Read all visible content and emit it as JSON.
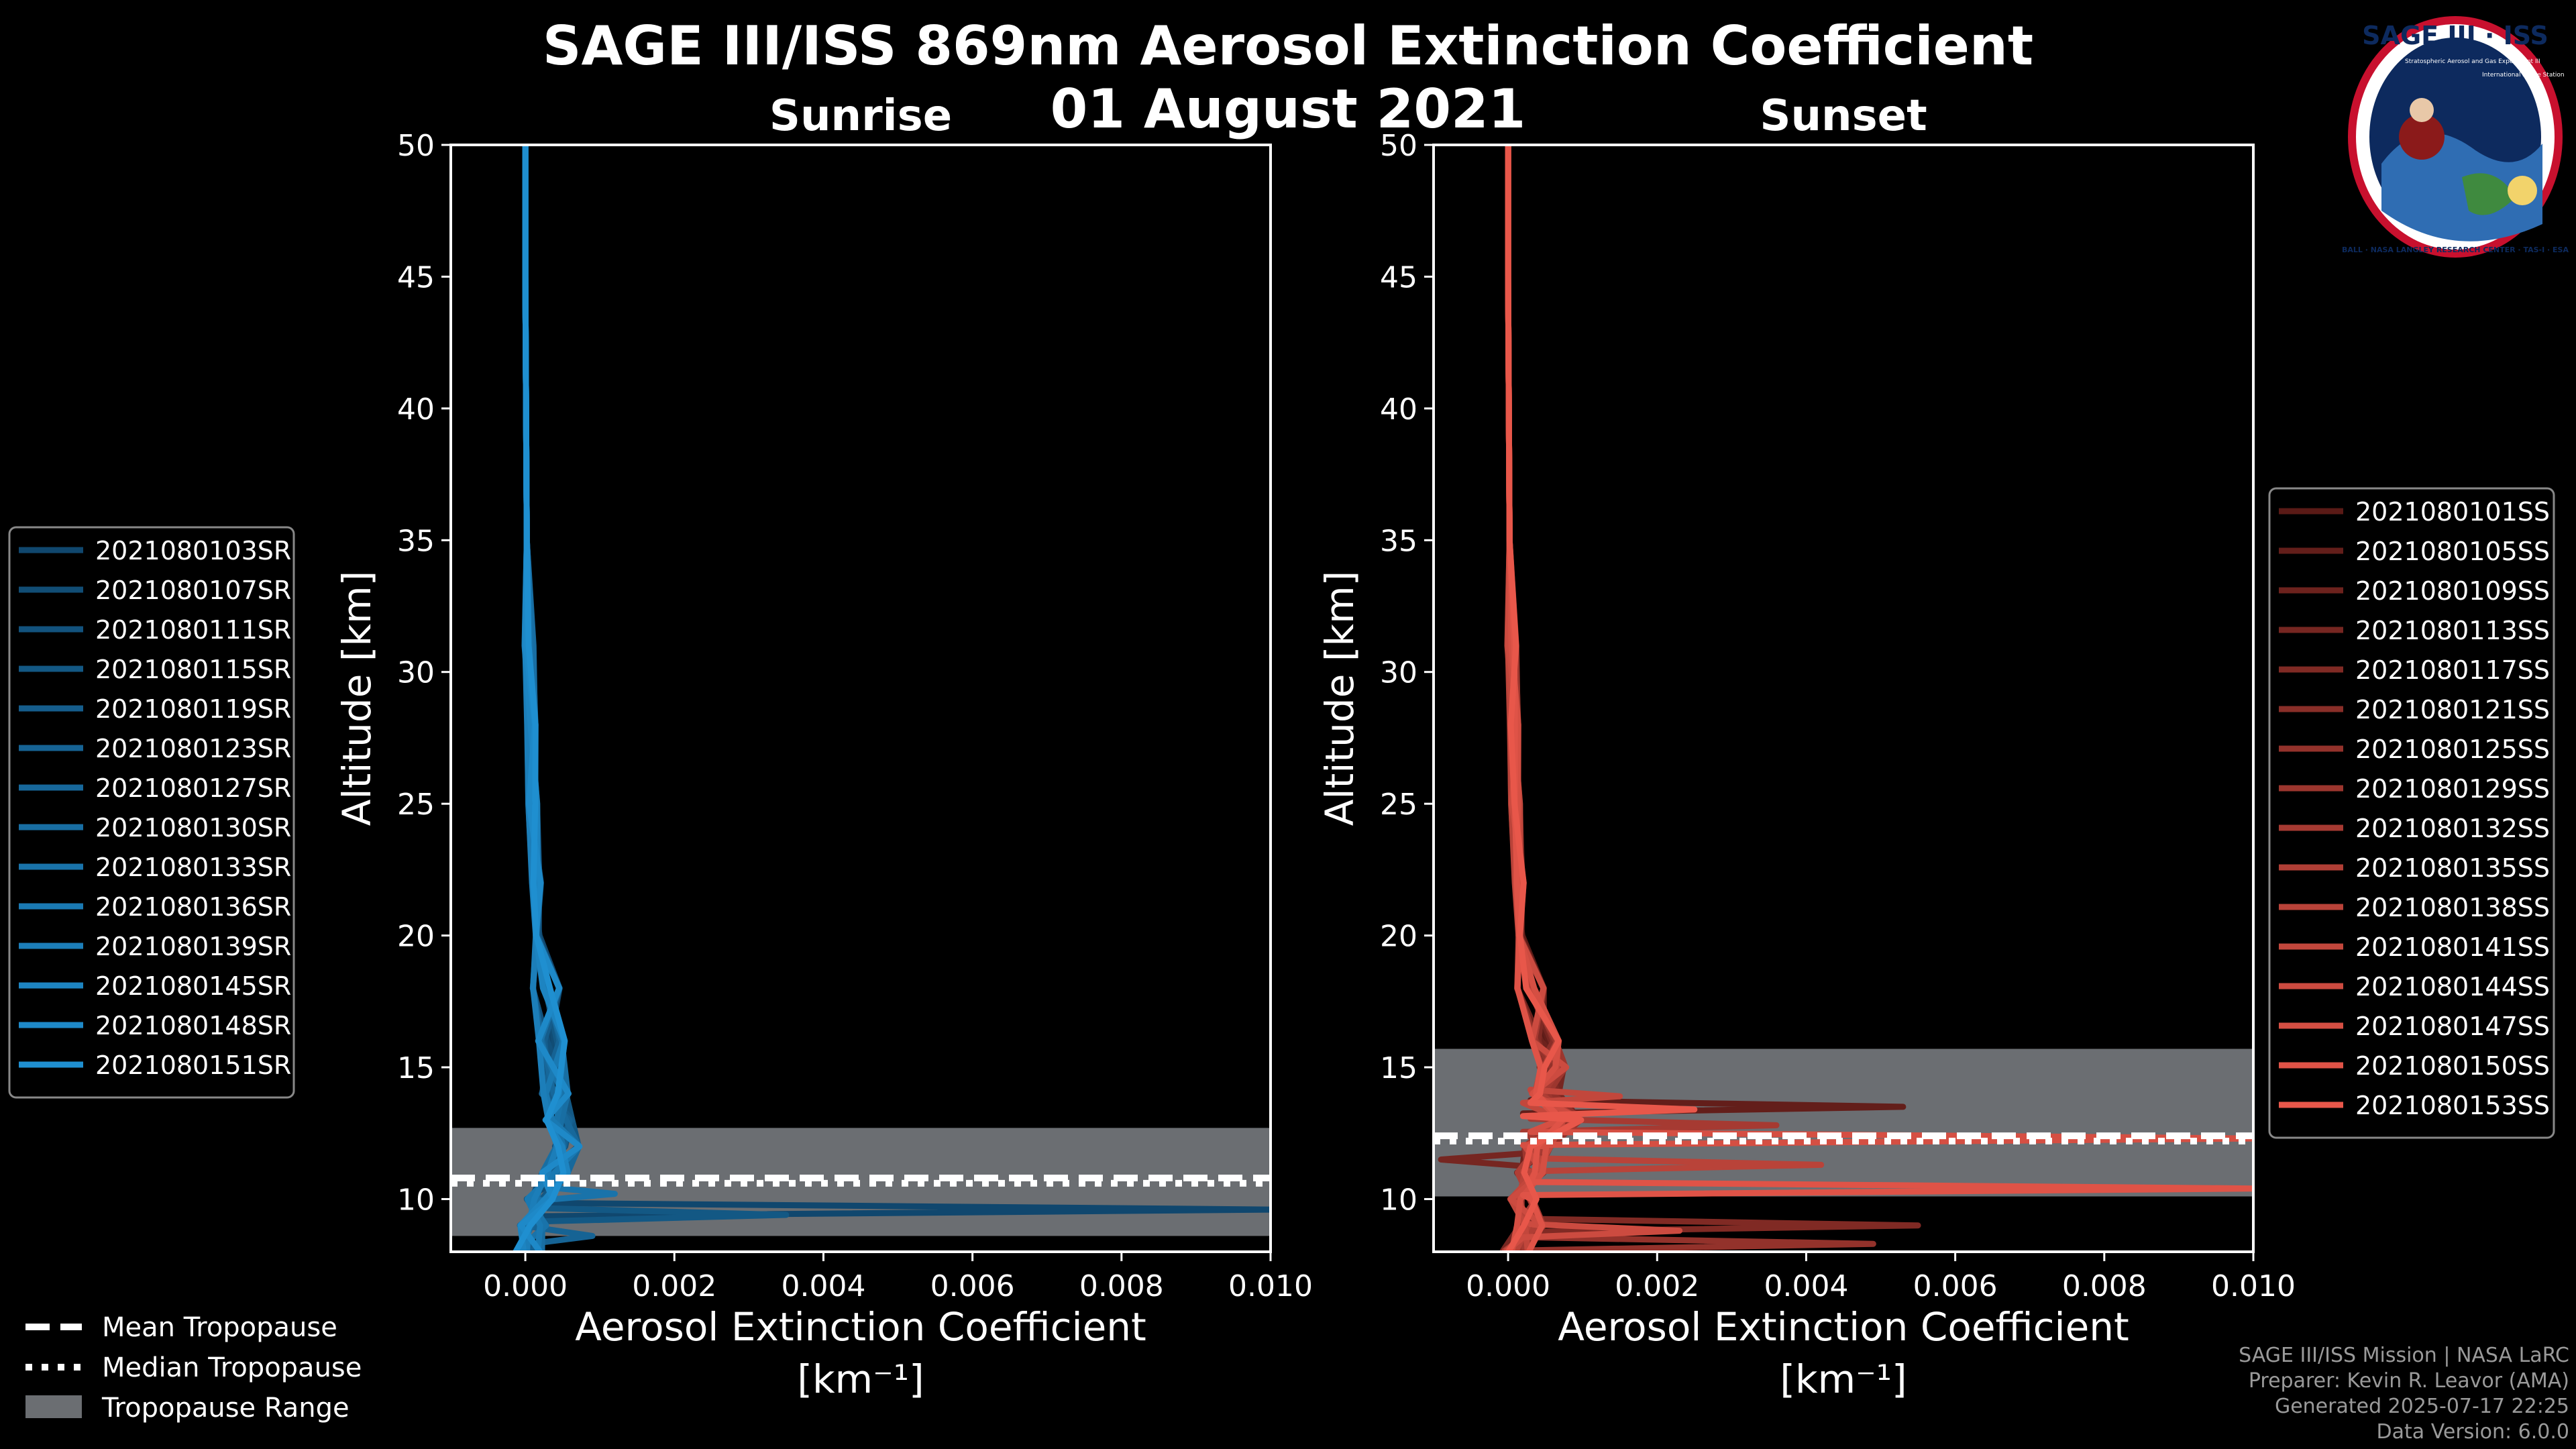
{
  "title_line1": "SAGE III/ISS 869nm Aerosol Extinction Coefficient",
  "title_line2": "01 August 2021",
  "footer": {
    "line1": "SAGE III/ISS Mission | NASA LaRC",
    "line2": "Preparer: Kevin R. Leavor (AMA)",
    "line3": "Generated 2025-07-17 22:25",
    "line4": "Data Version: 6.0.0"
  },
  "logo": {
    "text_top": "SAGE III · ISS",
    "text_ring": "BALL · NASA LANGLEY RESEARCH CENTER · TAS-I · ESA",
    "text_left": "Stratospheric Aerosol and Gas Experiment III",
    "text_right": "International Space Station"
  },
  "tropopause_legend": {
    "mean": "Mean Tropopause",
    "median": "Median Tropopause",
    "range": "Tropopause Range"
  },
  "colors": {
    "sunrise": "#1f8fd0",
    "sunset": "#e8574a",
    "band": "#6b6e72"
  },
  "chart_data": [
    {
      "type": "line",
      "title": "Sunrise",
      "xlabel": "Aerosol Extinction Coefficient",
      "xunit": "[km⁻¹]",
      "ylabel": "Altitude [km]",
      "xlim": [
        -0.001,
        0.01
      ],
      "ylim": [
        8,
        50
      ],
      "xticks": [
        "0.000",
        "0.002",
        "0.004",
        "0.006",
        "0.008",
        "0.010"
      ],
      "xtick_values": [
        0,
        0.002,
        0.004,
        0.006,
        0.008,
        0.01
      ],
      "yticks": [
        10,
        15,
        20,
        25,
        30,
        35,
        40,
        45,
        50
      ],
      "tropopause": {
        "mean": 10.8,
        "median": 10.6,
        "range": [
          8.6,
          12.7
        ]
      },
      "series_names": [
        "2021080103SR",
        "2021080107SR",
        "2021080111SR",
        "2021080115SR",
        "2021080119SR",
        "2021080123SR",
        "2021080127SR",
        "2021080130SR",
        "2021080133SR",
        "2021080136SR",
        "2021080139SR",
        "2021080145SR",
        "2021080148SR",
        "2021080151SR"
      ],
      "base_profile": {
        "alt": [
          50,
          45,
          40,
          35,
          31,
          28,
          25,
          22,
          20,
          18,
          16,
          14,
          13,
          12,
          11,
          10,
          9,
          8
        ],
        "ext": [
          0.0,
          0.0,
          1e-05,
          2e-05,
          5e-05,
          8e-05,
          0.0001,
          0.00015,
          0.0002,
          0.00028,
          0.00035,
          0.0004,
          0.00045,
          0.00055,
          0.0004,
          0.0002,
          0.0001,
          5e-05
        ]
      },
      "spikes": [
        {
          "series": 0,
          "alt": 9.6,
          "ext": 0.01
        },
        {
          "series": 3,
          "alt": 9.4,
          "ext": 0.0035
        },
        {
          "series": 5,
          "alt": 8.6,
          "ext": 0.0009
        },
        {
          "series": 8,
          "alt": 10.2,
          "ext": 0.0012
        }
      ]
    },
    {
      "type": "line",
      "title": "Sunset",
      "xlabel": "Aerosol Extinction Coefficient",
      "xunit": "[km⁻¹]",
      "ylabel": "Altitude [km]",
      "xlim": [
        -0.001,
        0.01
      ],
      "ylim": [
        8,
        50
      ],
      "xticks": [
        "0.000",
        "0.002",
        "0.004",
        "0.006",
        "0.008",
        "0.010"
      ],
      "xtick_values": [
        0,
        0.002,
        0.004,
        0.006,
        0.008,
        0.01
      ],
      "yticks": [
        10,
        15,
        20,
        25,
        30,
        35,
        40,
        45,
        50
      ],
      "tropopause": {
        "mean": 12.4,
        "median": 12.2,
        "range": [
          10.1,
          15.7
        ]
      },
      "series_names": [
        "2021080101SS",
        "2021080105SS",
        "2021080109SS",
        "2021080113SS",
        "2021080117SS",
        "2021080121SS",
        "2021080125SS",
        "2021080129SS",
        "2021080132SS",
        "2021080135SS",
        "2021080138SS",
        "2021080141SS",
        "2021080144SS",
        "2021080147SS",
        "2021080150SS",
        "2021080153SS"
      ],
      "base_profile": {
        "alt": [
          50,
          45,
          40,
          35,
          31,
          28,
          25,
          22,
          20,
          18,
          16,
          15,
          14,
          13,
          12,
          11,
          10,
          9,
          8
        ],
        "ext": [
          0.0,
          0.0,
          1e-05,
          2e-05,
          5e-05,
          8e-05,
          0.0001,
          0.00015,
          0.0002,
          0.0003,
          0.0005,
          0.0006,
          0.0005,
          0.0008,
          0.0004,
          0.0003,
          0.0002,
          0.0003,
          0.0001
        ]
      },
      "spikes": [
        {
          "series": 1,
          "alt": 13.5,
          "ext": 0.0053
        },
        {
          "series": 3,
          "alt": 11.5,
          "ext": -0.0009
        },
        {
          "series": 4,
          "alt": 9.0,
          "ext": 0.0055
        },
        {
          "series": 6,
          "alt": 8.3,
          "ext": 0.0049
        },
        {
          "series": 8,
          "alt": 12.8,
          "ext": 0.0036
        },
        {
          "series": 10,
          "alt": 11.3,
          "ext": 0.0042
        },
        {
          "series": 11,
          "alt": 13.9,
          "ext": 0.0015
        },
        {
          "series": 12,
          "alt": 8.8,
          "ext": 0.0023
        },
        {
          "series": 13,
          "alt": 12.3,
          "ext": 0.01
        },
        {
          "series": 14,
          "alt": 10.4,
          "ext": 0.01
        },
        {
          "series": 15,
          "alt": 13.4,
          "ext": 0.0025
        }
      ]
    }
  ]
}
